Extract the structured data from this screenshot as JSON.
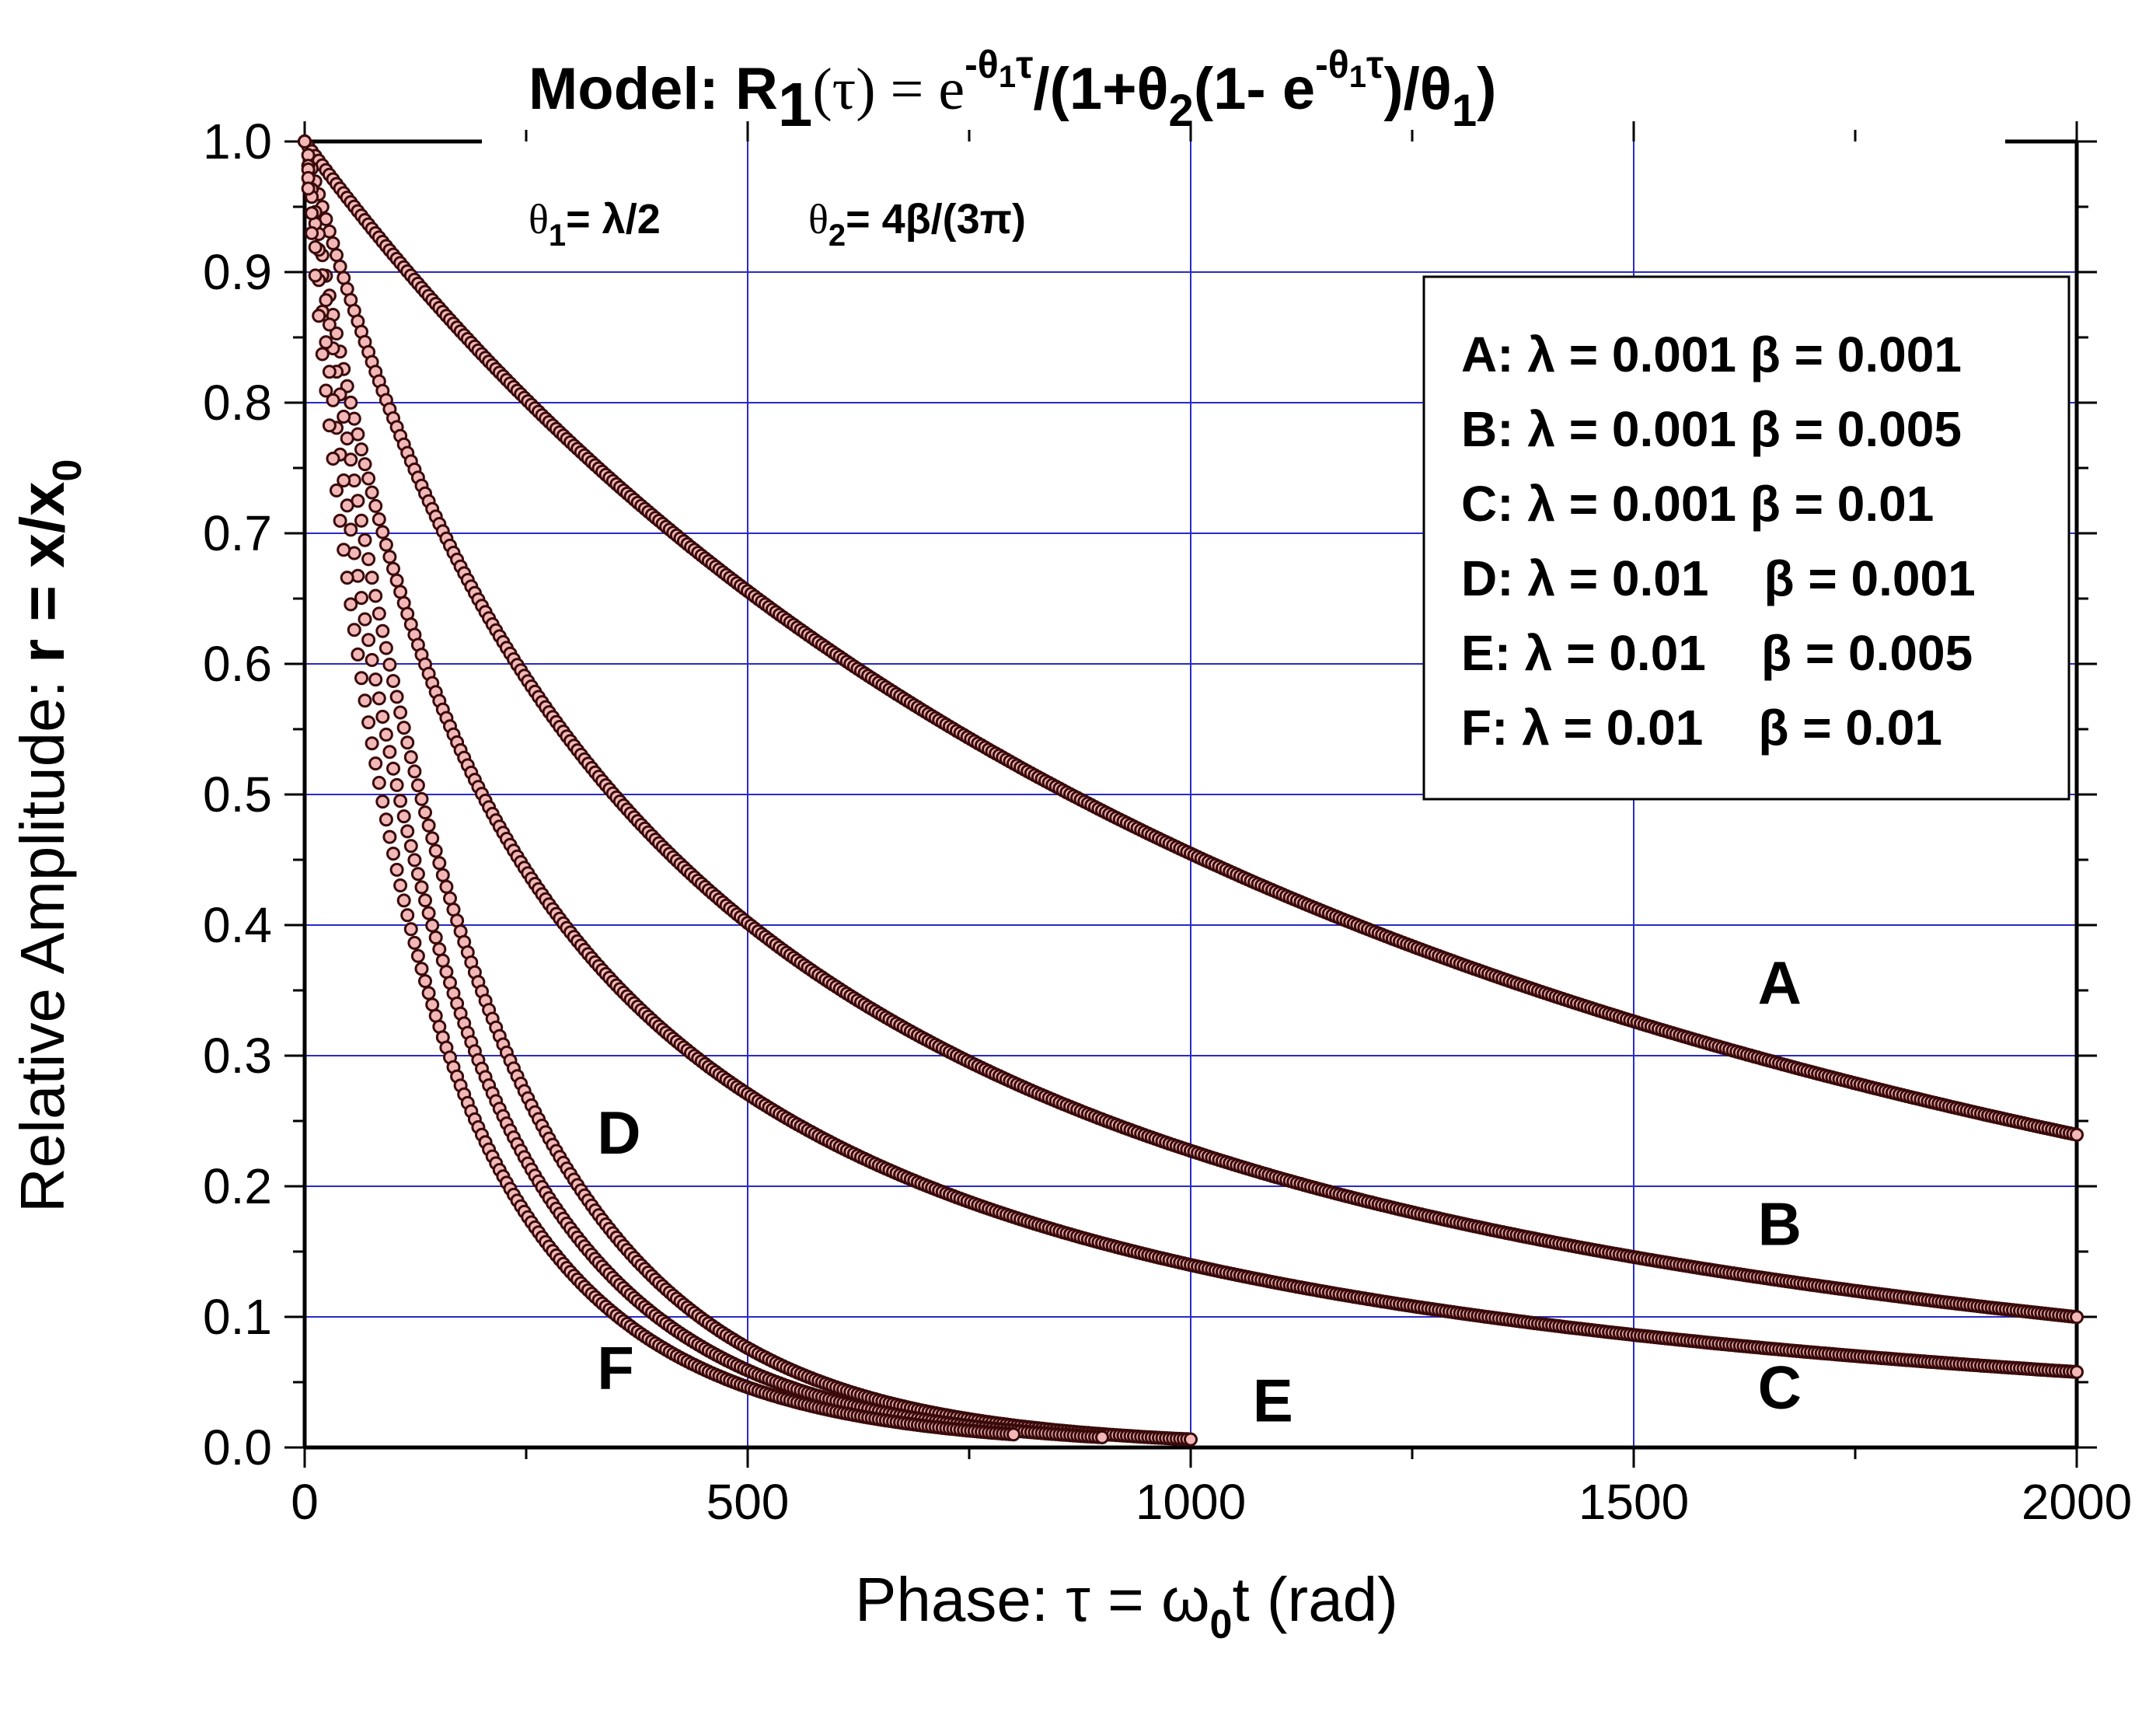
{
  "chart_data": {
    "type": "scatter",
    "title": {
      "prefix": "Model: R",
      "sub1": "1",
      "open": "(τ) = e",
      "exp1": "-θ",
      "exp1_sub": "1",
      "exp1_tail": "τ",
      "mid": "/(1+θ",
      "sub2": "2",
      "mid2": "(1- e",
      "exp2": "-θ",
      "exp2_sub": "1",
      "exp2_tail": "τ",
      "end": ")/θ",
      "sub3": "1",
      "close": ")"
    },
    "params": {
      "theta1": {
        "sym": "θ",
        "sub": "1",
        "rest": "= λ/2"
      },
      "theta2": {
        "sym": "θ",
        "sub": "2",
        "rest": "= 4β/(3π)"
      }
    },
    "xlabel": {
      "prefix": "Phase: τ = ω",
      "sub": "0",
      "suffix": "t   (rad)"
    },
    "ylabel": {
      "prefix": "Relative Amplitude: ",
      "bold": "r = x/x",
      "sub": "0"
    },
    "xlim": [
      0,
      2000
    ],
    "ylim": [
      0,
      1.0
    ],
    "xticks": [
      "0",
      "500",
      "1000",
      "1500",
      "2000"
    ],
    "yticks": [
      "0.0",
      "0.1",
      "0.2",
      "0.3",
      "0.4",
      "0.5",
      "0.6",
      "0.7",
      "0.8",
      "0.9",
      "1.0"
    ],
    "grid": true,
    "legend_position": "top-right",
    "legend": [
      "A: λ = 0.001 β = 0.001",
      "B: λ = 0.001 β = 0.005",
      "C: λ = 0.001 β = 0.01",
      "D: λ = 0.01    β = 0.001",
      "E: λ = 0.01    β = 0.005",
      "F: λ = 0.01    β = 0.01"
    ],
    "series": [
      {
        "name": "A",
        "lambda": 0.001,
        "beta": 0.001,
        "x_max": 2000,
        "step": 4,
        "label": "A",
        "label_at": [
          1640,
          0.34
        ]
      },
      {
        "name": "B",
        "lambda": 0.001,
        "beta": 0.005,
        "x_max": 2000,
        "step": 4,
        "label": "B",
        "label_at": [
          1640,
          0.155
        ]
      },
      {
        "name": "C",
        "lambda": 0.001,
        "beta": 0.01,
        "x_max": 2000,
        "step": 4,
        "label": "C",
        "label_at": [
          1640,
          0.03
        ]
      },
      {
        "name": "D",
        "lambda": 0.01,
        "beta": 0.001,
        "x_max": 1000,
        "step": 4,
        "label": "D",
        "label_at": [
          330,
          0.225
        ]
      },
      {
        "name": "E",
        "lambda": 0.01,
        "beta": 0.005,
        "x_max": 900,
        "step": 4,
        "label": "E",
        "label_at": [
          1070,
          0.02
        ]
      },
      {
        "name": "F",
        "lambda": 0.01,
        "beta": 0.01,
        "x_max": 800,
        "step": 4,
        "label": "F",
        "label_at": [
          330,
          0.045
        ]
      }
    ],
    "colors": {
      "grid": "#2a2ac8",
      "marker_stroke": "#3a0a0a",
      "marker_fill": "#f2b8b8",
      "axis": "#000000"
    }
  }
}
